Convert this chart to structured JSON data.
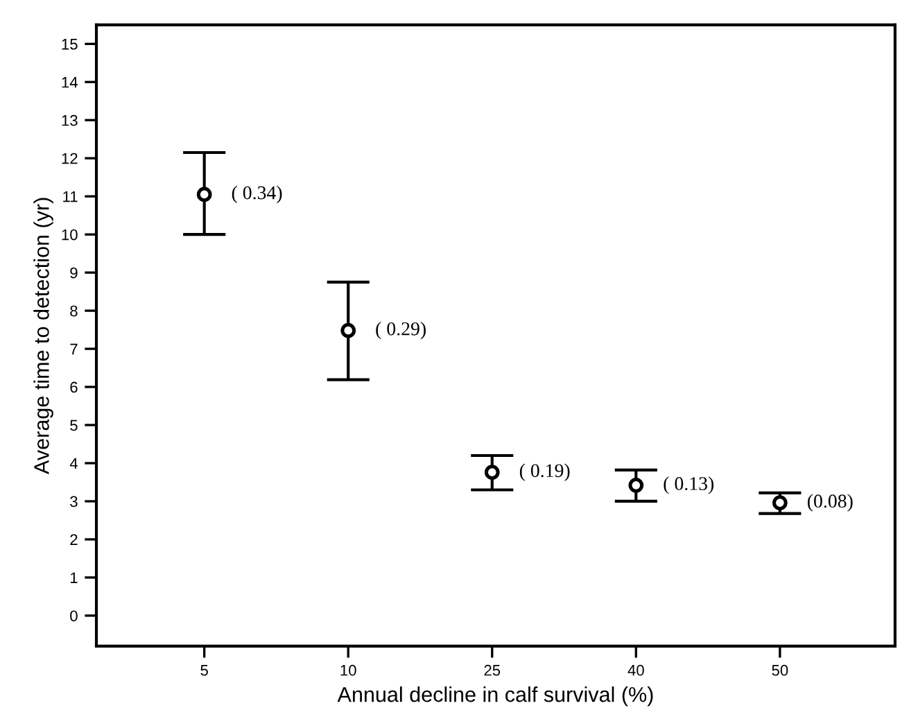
{
  "chart_data": {
    "type": "scatter",
    "xlabel": "Annual decline in calf survival (%)",
    "ylabel": "Average time to detection (yr)",
    "categories": [
      "5",
      "10",
      "25",
      "40",
      "50"
    ],
    "series": [
      {
        "color": "#000000",
        "values": [
          11.05,
          7.48,
          3.76,
          3.42,
          2.96
        ],
        "errors": [
          [
            10.0,
            12.15
          ],
          [
            6.19,
            8.75
          ],
          [
            3.3,
            4.2
          ],
          [
            3.0,
            3.82
          ],
          [
            2.68,
            3.22
          ]
        ]
      }
    ],
    "ylim": [
      -0.8,
      15.5
    ],
    "yticks": [
      0,
      1,
      2,
      3,
      4,
      5,
      6,
      7,
      8,
      9,
      10,
      11,
      12,
      13,
      14,
      15
    ],
    "marker": "circle",
    "grid": false,
    "annotations": [
      {
        "text": "( 0.34)",
        "x": "5",
        "y": 11.05
      },
      {
        "text": "( 0.29)",
        "x": "10",
        "y": 7.48
      },
      {
        "text": "( 0.19)",
        "x": "25",
        "y": 3.76
      },
      {
        "text": "( 0.13)",
        "x": "40",
        "y": 3.42
      },
      {
        "text": "(0.08)",
        "x": "50",
        "y": 2.96
      }
    ]
  }
}
